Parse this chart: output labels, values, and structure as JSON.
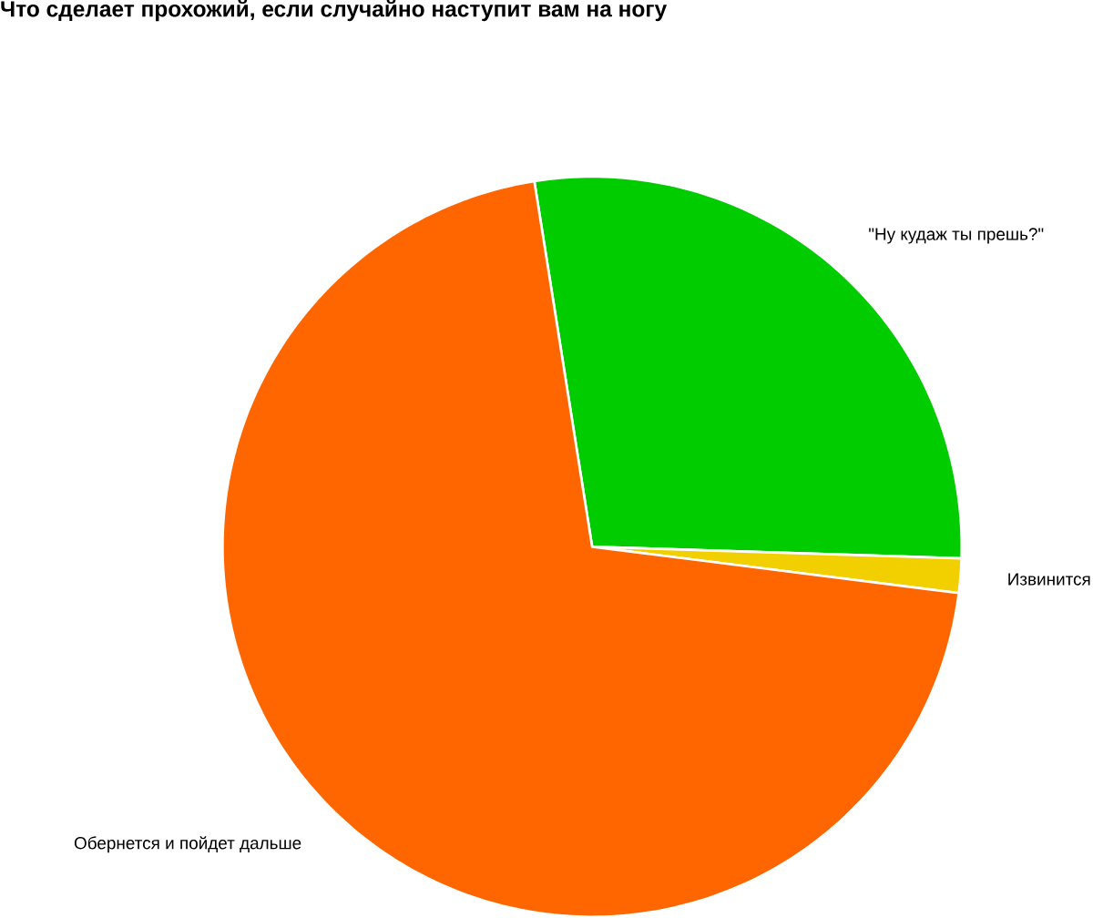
{
  "chart_data": {
    "type": "pie",
    "title": "Что сделает прохожий, если случайно наступит вам на ногу",
    "categories": [
      "\"Ну кудаж ты прешь?\"",
      "Извинится",
      "Обернется и пойдет дальше"
    ],
    "values": [
      28,
      1.5,
      70.5
    ],
    "colors": [
      "#00cc00",
      "#f2d000",
      "#ff6600"
    ]
  }
}
